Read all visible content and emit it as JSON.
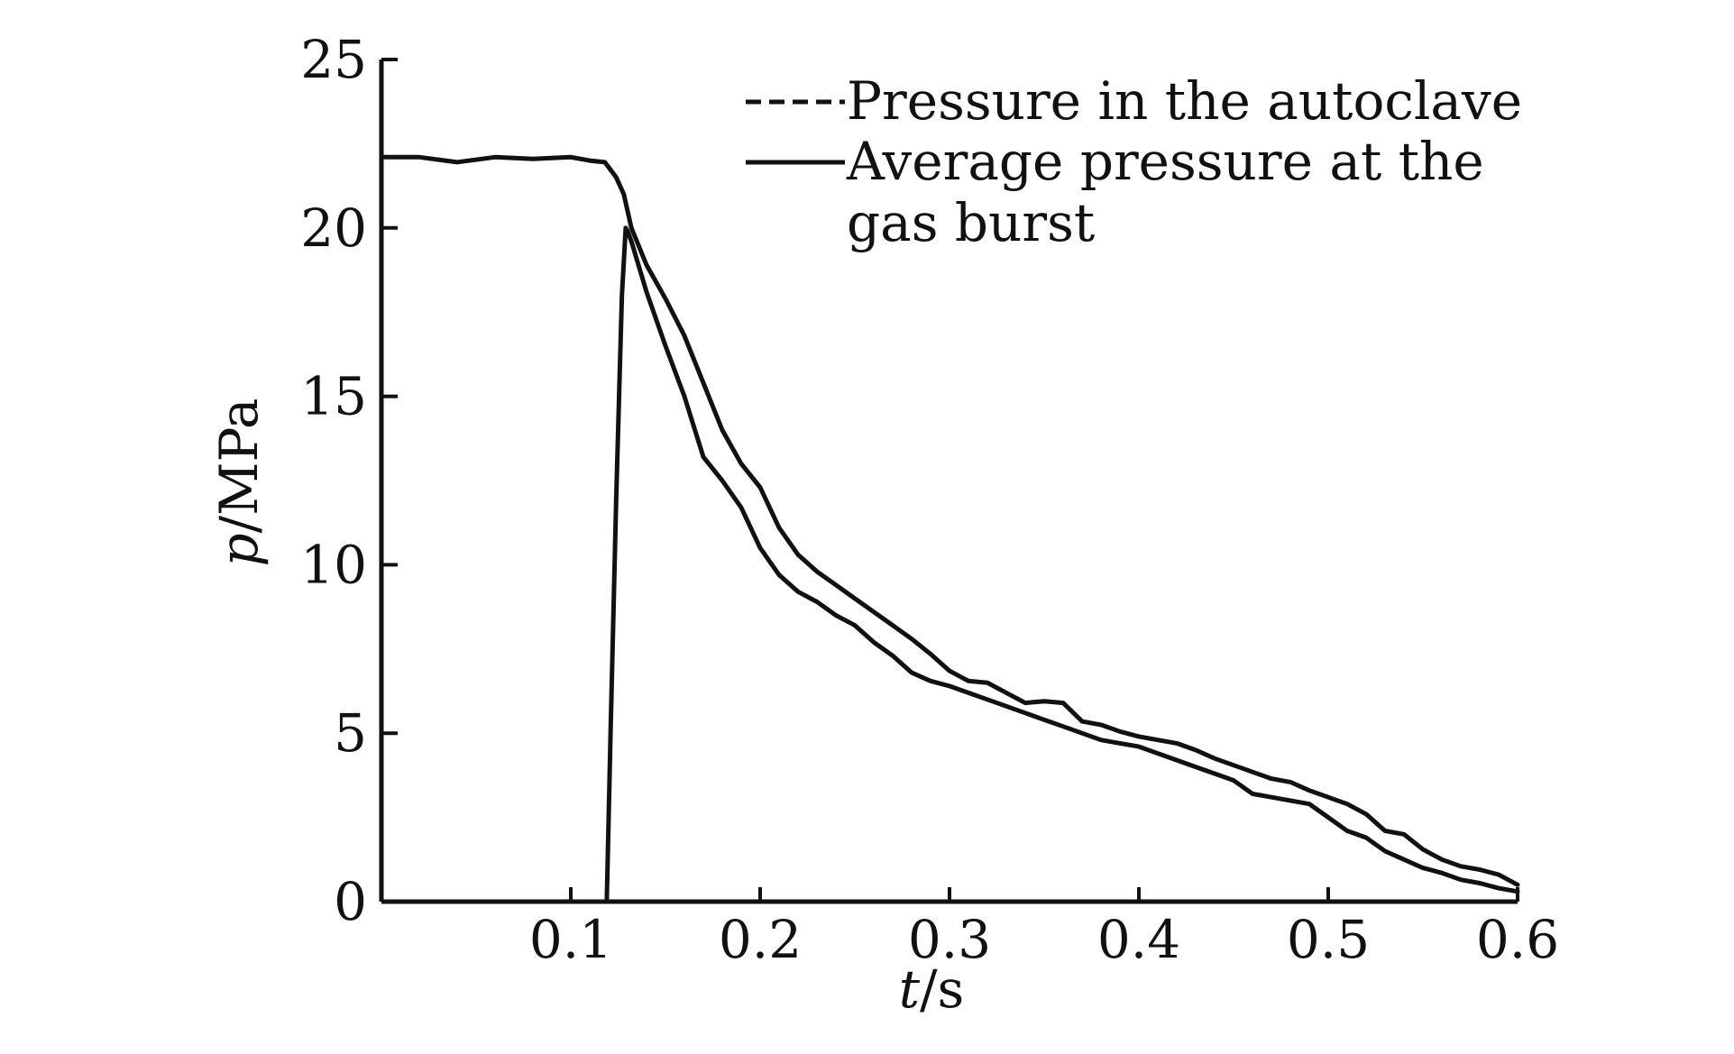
{
  "chart_data": {
    "type": "line",
    "title": "",
    "xlabel": {
      "variable": "t",
      "unit": "/s"
    },
    "ylabel": {
      "variable": "p",
      "unit": "/MPa"
    },
    "xlim": [
      0,
      0.6
    ],
    "ylim": [
      0,
      25
    ],
    "x_ticks": [
      0.1,
      0.2,
      0.3,
      0.4,
      0.5,
      0.6
    ],
    "x_tick_labels": [
      "0.1",
      "0.2",
      "0.3",
      "0.4",
      "0.5",
      "0.6"
    ],
    "y_ticks": [
      0,
      5,
      10,
      15,
      20,
      25
    ],
    "y_tick_labels": [
      "0",
      "5",
      "10",
      "15",
      "20",
      "25"
    ],
    "grid": false,
    "legend_position": "top-right",
    "legend": [
      "Pressure in the autoclave",
      "Average pressure at the gas burst"
    ],
    "series": [
      {
        "name": "Pressure in the autoclave",
        "line_style": "dashed",
        "color": "#111111",
        "x": [
          0.0,
          0.02,
          0.04,
          0.06,
          0.08,
          0.1,
          0.11,
          0.118,
          0.124,
          0.128,
          0.132,
          0.14,
          0.15,
          0.16,
          0.17,
          0.18,
          0.19,
          0.2,
          0.21,
          0.22,
          0.23,
          0.24,
          0.25,
          0.26,
          0.27,
          0.28,
          0.29,
          0.3,
          0.31,
          0.32,
          0.33,
          0.34,
          0.35,
          0.36,
          0.37,
          0.38,
          0.39,
          0.4,
          0.41,
          0.42,
          0.43,
          0.44,
          0.45,
          0.46,
          0.47,
          0.48,
          0.49,
          0.5,
          0.51,
          0.52,
          0.53,
          0.54,
          0.55,
          0.56,
          0.57,
          0.58,
          0.59,
          0.6
        ],
        "y": [
          22.1,
          22.1,
          21.95,
          22.1,
          22.05,
          22.1,
          22.0,
          21.95,
          21.5,
          21.0,
          20.0,
          18.9,
          17.9,
          16.8,
          15.4,
          14.0,
          13.0,
          12.3,
          11.1,
          10.3,
          9.8,
          9.4,
          9.0,
          8.6,
          8.2,
          7.8,
          7.35,
          6.85,
          6.55,
          6.5,
          6.2,
          5.9,
          5.95,
          5.9,
          5.35,
          5.25,
          5.05,
          4.9,
          4.8,
          4.7,
          4.5,
          4.25,
          4.05,
          3.85,
          3.65,
          3.55,
          3.3,
          3.1,
          2.9,
          2.6,
          2.1,
          2.0,
          1.55,
          1.25,
          1.05,
          0.95,
          0.8,
          0.5
        ]
      },
      {
        "name": "Average pressure at the gas burst",
        "line_style": "solid",
        "color": "#111111",
        "x": [
          0.119,
          0.121,
          0.124,
          0.127,
          0.129,
          0.13,
          0.132,
          0.14,
          0.15,
          0.16,
          0.17,
          0.18,
          0.19,
          0.2,
          0.21,
          0.22,
          0.23,
          0.24,
          0.25,
          0.26,
          0.27,
          0.28,
          0.29,
          0.3,
          0.31,
          0.32,
          0.33,
          0.34,
          0.35,
          0.36,
          0.37,
          0.38,
          0.39,
          0.4,
          0.41,
          0.42,
          0.43,
          0.44,
          0.45,
          0.46,
          0.47,
          0.48,
          0.49,
          0.5,
          0.51,
          0.52,
          0.53,
          0.54,
          0.55,
          0.56,
          0.57,
          0.58,
          0.59,
          0.6
        ],
        "y": [
          0.0,
          5.0,
          12.0,
          18.0,
          20.0,
          19.9,
          19.6,
          18.1,
          16.5,
          15.0,
          13.2,
          12.5,
          11.7,
          10.5,
          9.7,
          9.2,
          8.9,
          8.5,
          8.2,
          7.7,
          7.3,
          6.8,
          6.55,
          6.4,
          6.2,
          6.0,
          5.8,
          5.6,
          5.4,
          5.2,
          5.0,
          4.8,
          4.7,
          4.6,
          4.4,
          4.2,
          4.0,
          3.8,
          3.6,
          3.2,
          3.1,
          3.0,
          2.9,
          2.5,
          2.1,
          1.9,
          1.5,
          1.25,
          1.0,
          0.85,
          0.65,
          0.55,
          0.4,
          0.3
        ]
      }
    ]
  }
}
